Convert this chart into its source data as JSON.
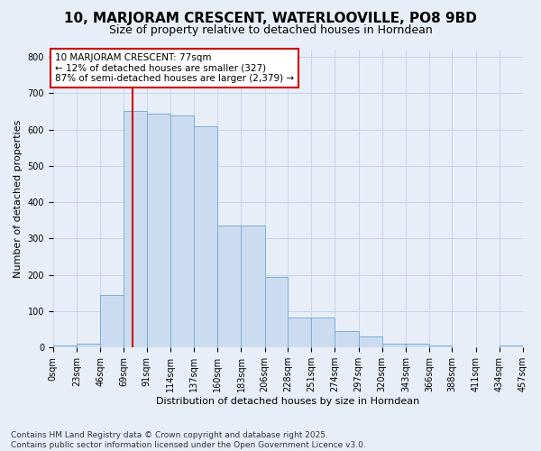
{
  "title1": "10, MARJORAM CRESCENT, WATERLOOVILLE, PO8 9BD",
  "title2": "Size of property relative to detached houses in Horndean",
  "xlabel": "Distribution of detached houses by size in Horndean",
  "ylabel": "Number of detached properties",
  "bar_values": [
    5,
    10,
    145,
    650,
    645,
    640,
    610,
    335,
    335,
    195,
    83,
    83,
    45,
    30,
    10,
    10,
    5,
    0,
    0,
    5
  ],
  "bin_edges": [
    0,
    23,
    46,
    69,
    91,
    114,
    137,
    160,
    183,
    206,
    228,
    251,
    274,
    297,
    320,
    343,
    366,
    388,
    411,
    434,
    457
  ],
  "tick_labels": [
    "0sqm",
    "23sqm",
    "46sqm",
    "69sqm",
    "91sqm",
    "114sqm",
    "137sqm",
    "160sqm",
    "183sqm",
    "206sqm",
    "228sqm",
    "251sqm",
    "274sqm",
    "297sqm",
    "320sqm",
    "343sqm",
    "366sqm",
    "388sqm",
    "411sqm",
    "434sqm",
    "457sqm"
  ],
  "bar_color": "#ccdcf0",
  "bar_edge_color": "#7aadd4",
  "grid_color": "#c8d4e8",
  "background_color": "#e8eef8",
  "vline_x": 77,
  "vline_color": "#cc0000",
  "annotation_text": "10 MARJORAM CRESCENT: 77sqm\n← 12% of detached houses are smaller (327)\n87% of semi-detached houses are larger (2,379) →",
  "annotation_box_color": "#ffffff",
  "annotation_box_edge": "#cc0000",
  "ylim": [
    0,
    820
  ],
  "yticks": [
    0,
    100,
    200,
    300,
    400,
    500,
    600,
    700,
    800
  ],
  "footnote": "Contains HM Land Registry data © Crown copyright and database right 2025.\nContains public sector information licensed under the Open Government Licence v3.0.",
  "title1_fontsize": 11,
  "title2_fontsize": 9,
  "annotation_fontsize": 7.5,
  "footnote_fontsize": 6.5,
  "axis_label_fontsize": 8,
  "tick_fontsize": 7
}
